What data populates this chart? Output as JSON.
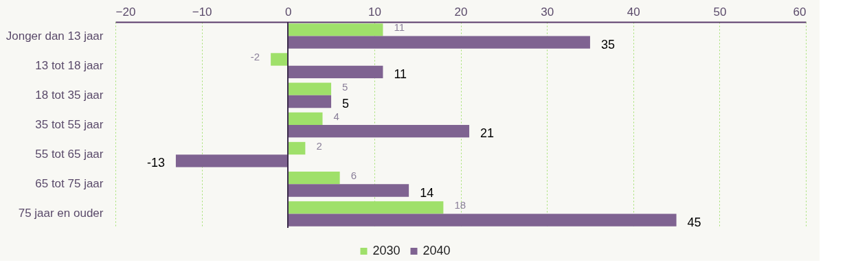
{
  "chart_data": {
    "type": "bar",
    "orientation": "horizontal",
    "categories": [
      "Jonger dan 13 jaar",
      "13 tot 18 jaar",
      "18 tot 35 jaar",
      "35 tot 55 jaar",
      "55 tot 65 jaar",
      "65 tot 75 jaar",
      "75 jaar en ouder"
    ],
    "series": [
      {
        "name": "2030",
        "color": "#9fe06a",
        "values": [
          11,
          -2,
          5,
          4,
          2,
          6,
          18
        ]
      },
      {
        "name": "2040",
        "color": "#7f6391",
        "values": [
          35,
          11,
          5,
          21,
          -13,
          14,
          45
        ]
      }
    ],
    "xlim": [
      -20,
      60
    ],
    "xticks": [
      -20,
      -10,
      0,
      10,
      20,
      30,
      40,
      50,
      60
    ],
    "grid": "x",
    "legend": "bottom",
    "data_labels": true
  }
}
